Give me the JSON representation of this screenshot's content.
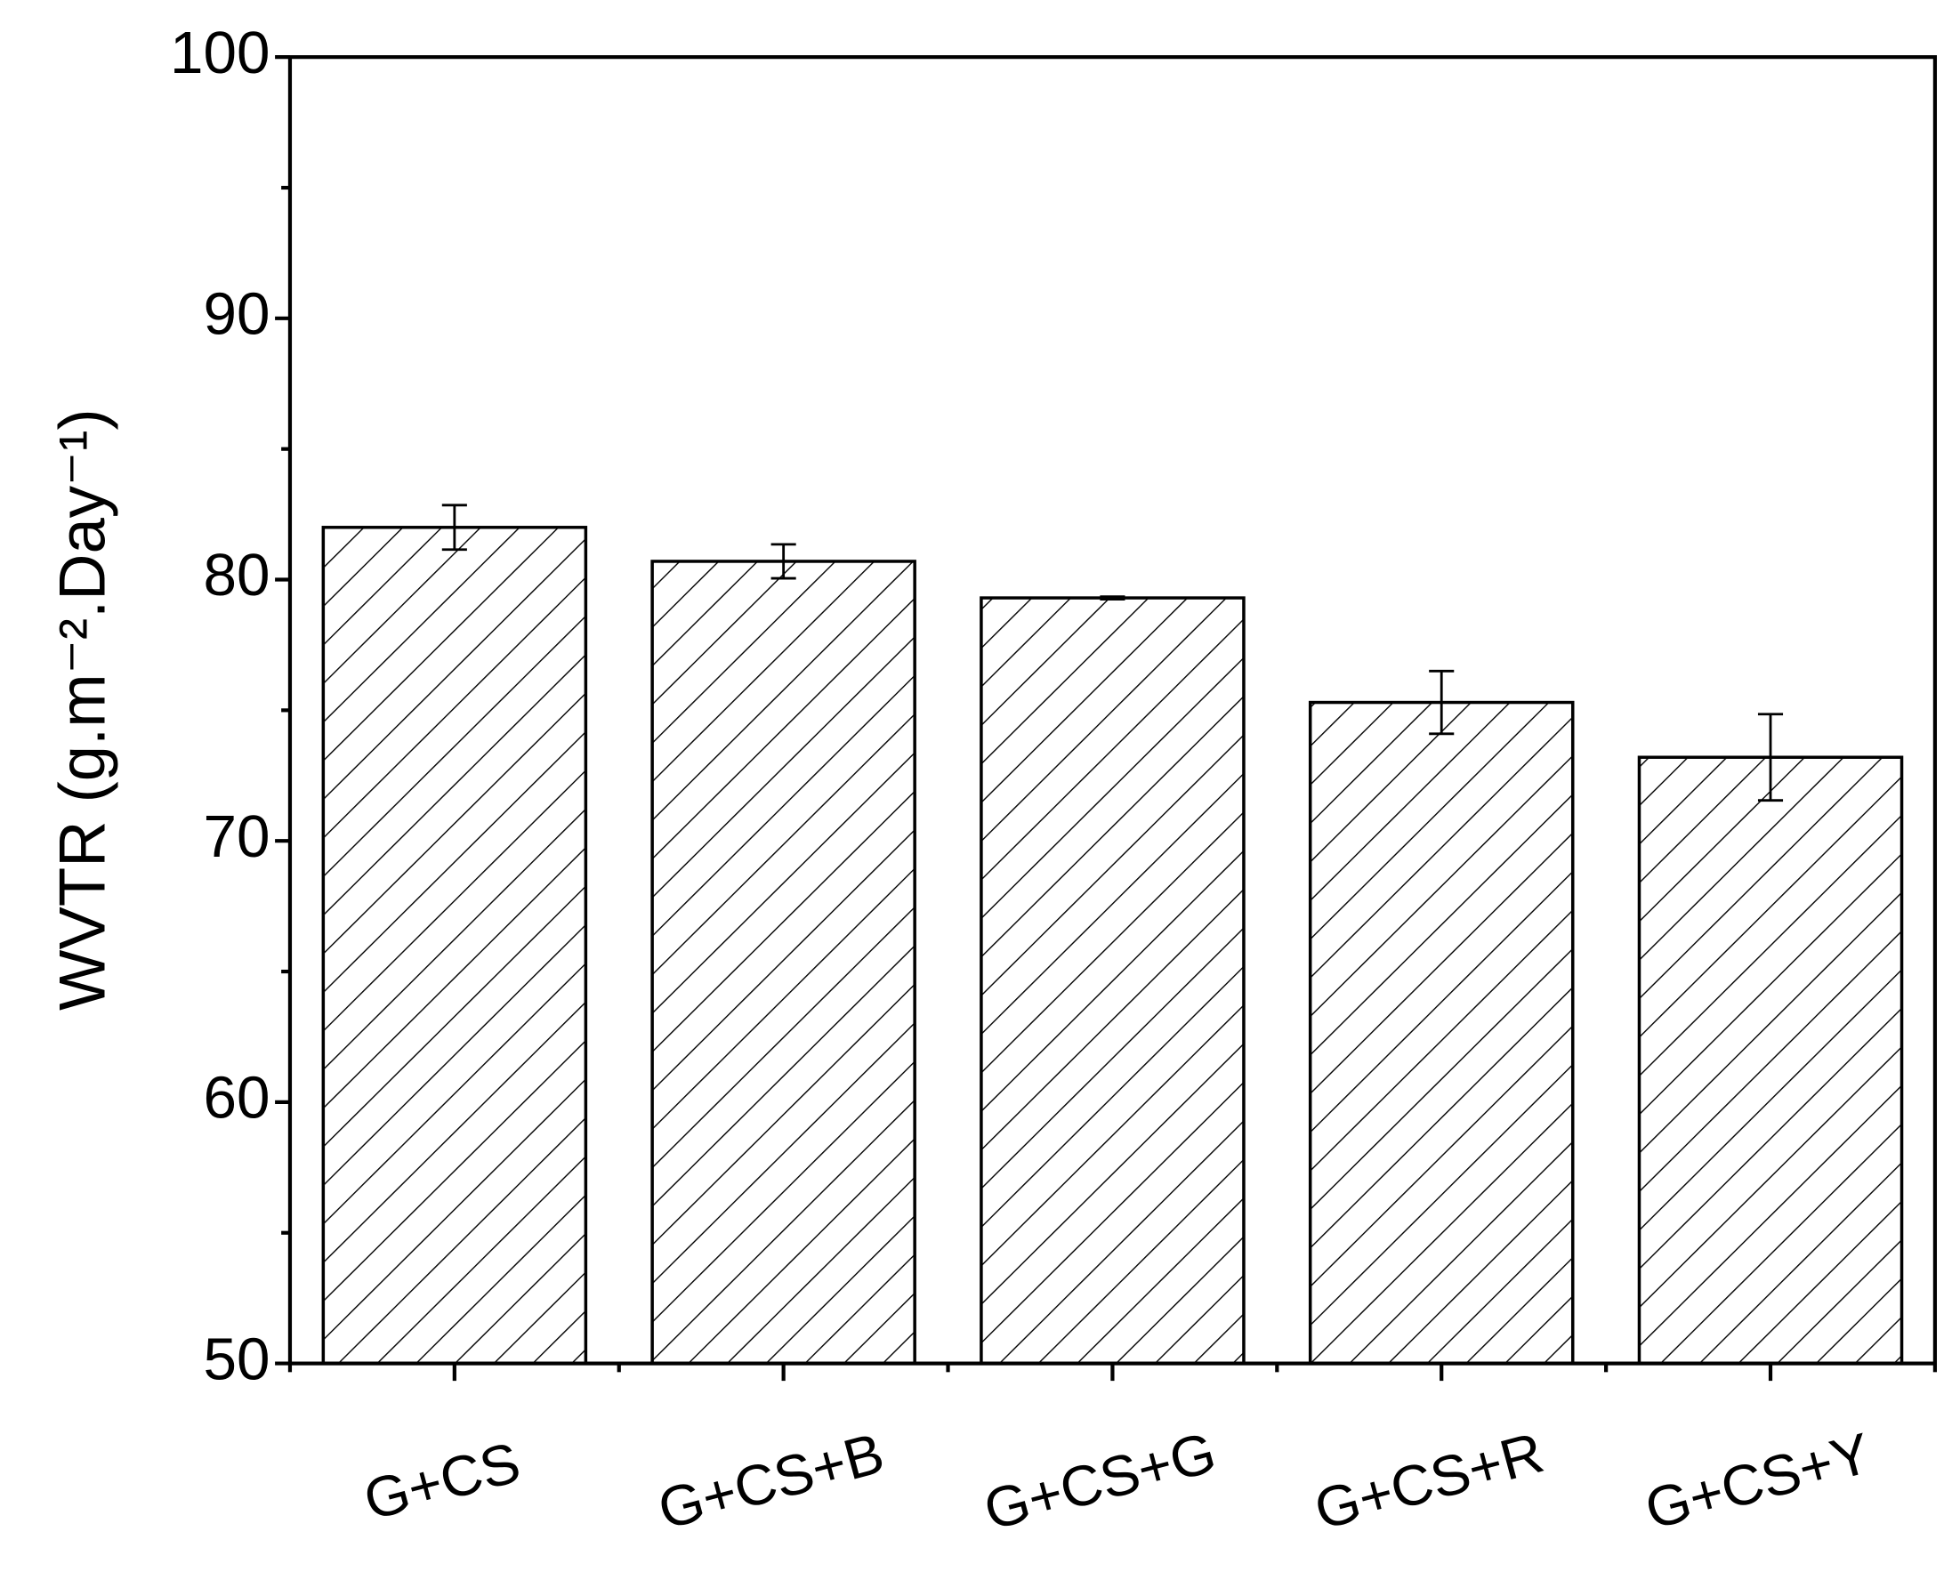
{
  "chart_data": {
    "type": "bar",
    "y_label": "WVTR (g.m⁻².Day⁻¹)",
    "categories": [
      "G+CS",
      "G+CS+B",
      "G+CS+G",
      "G+CS+R",
      "G+CS+Y"
    ],
    "values": [
      82.0,
      80.7,
      79.3,
      75.3,
      73.2
    ],
    "errors": [
      0.85,
      0.65,
      0.05,
      1.2,
      1.65
    ],
    "color": "#000000",
    "hatch": "diagonal",
    "ylim": [
      50,
      100
    ],
    "yticks": [
      50,
      60,
      70,
      80,
      90,
      100
    ],
    "grid": false
  }
}
